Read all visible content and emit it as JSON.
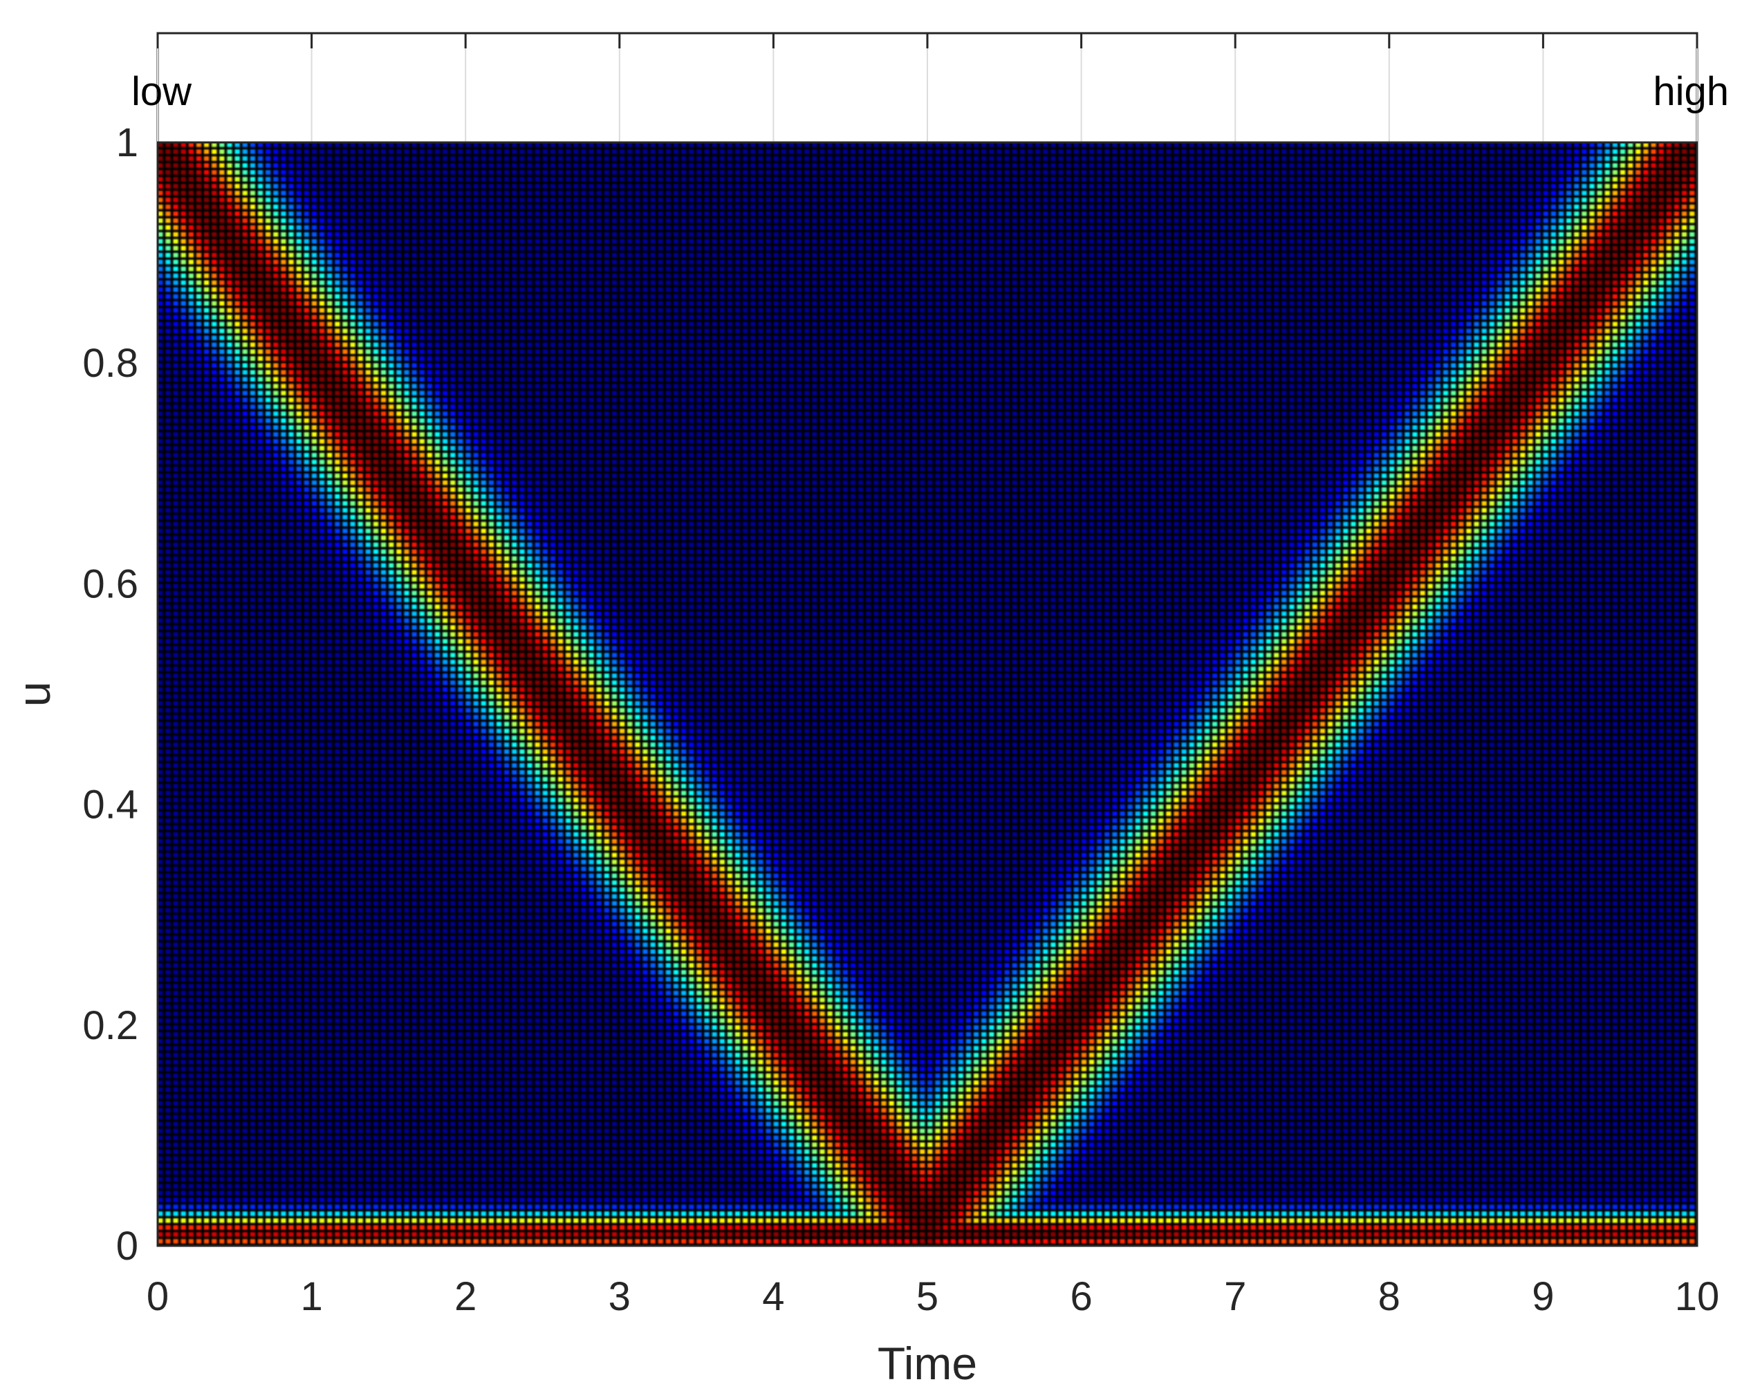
{
  "chart_data": {
    "type": "heatmap",
    "title": "",
    "xlabel": "Time",
    "ylabel": "u",
    "xlim": [
      0,
      10
    ],
    "ylim": [
      0,
      1
    ],
    "x_ticks": [
      "0",
      "1",
      "2",
      "3",
      "4",
      "5",
      "6",
      "7",
      "8",
      "9",
      "10"
    ],
    "y_ticks": [
      "0",
      "0.2",
      "0.4",
      "0.6",
      "0.8",
      "1"
    ],
    "colormap": "jet",
    "colorbar": {
      "low_label": "low",
      "high_label": "high"
    },
    "grid": true,
    "description_of_pattern": {
      "ridge_left": {
        "start": [
          0,
          1.0
        ],
        "end": [
          5,
          0.02
        ]
      },
      "ridge_right": {
        "start": [
          5,
          0.02
        ],
        "end": [
          10,
          1.0
        ]
      },
      "bottom_band_u": 0.01,
      "intensity_scale": [
        0,
        1
      ]
    }
  }
}
